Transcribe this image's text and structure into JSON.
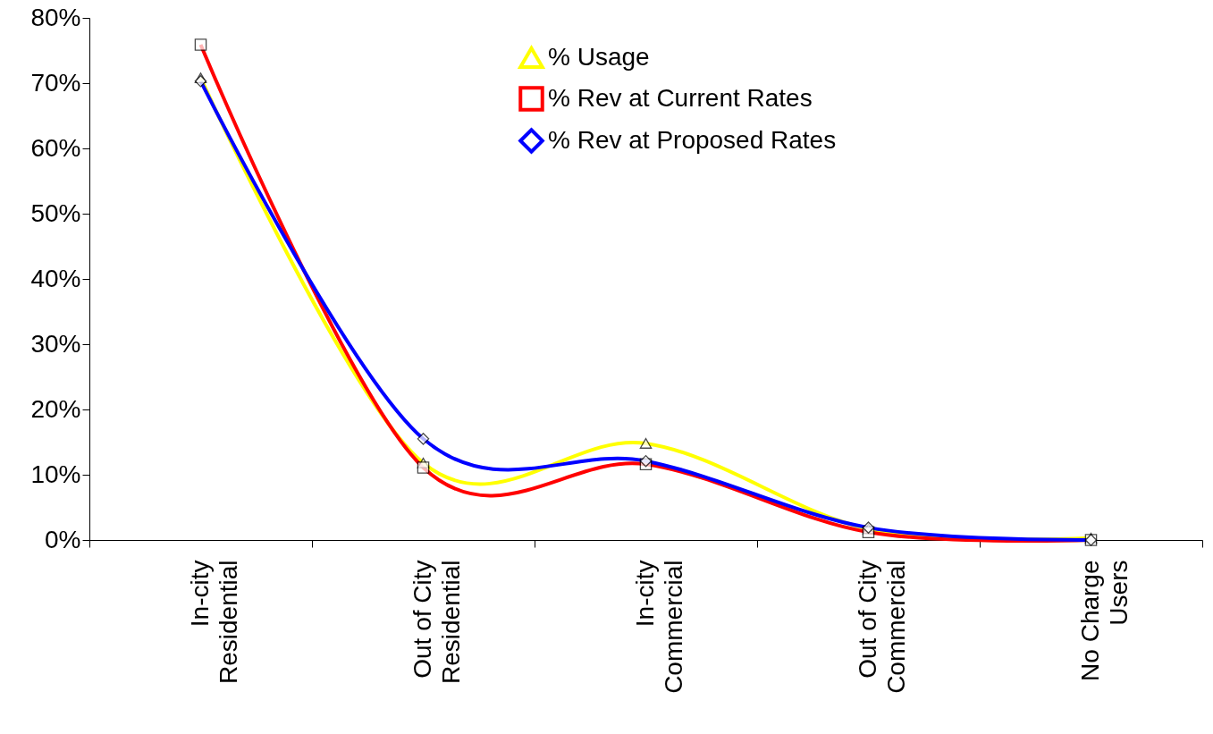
{
  "chart_data": {
    "type": "line",
    "categories": [
      "In-city\nResidential",
      "Out of City\nResidential",
      "In-city\nCommercial",
      "Out of City\nCommercial",
      "No Charge\nUsers"
    ],
    "series": [
      {
        "name": "% Usage",
        "color": "#ffff00",
        "marker": "triangle",
        "values": [
          70.8,
          11.8,
          14.8,
          1.7,
          0.3
        ]
      },
      {
        "name": "% Rev at Current Rates",
        "color": "#ff0000",
        "marker": "square",
        "values": [
          75.9,
          11.1,
          11.6,
          1.2,
          0.0
        ]
      },
      {
        "name": "% Rev at Proposed Rates",
        "color": "#0000ff",
        "marker": "diamond",
        "values": [
          70.3,
          15.5,
          12.1,
          1.9,
          0.0
        ]
      }
    ],
    "ylim": [
      0,
      80
    ],
    "yticks": [
      {
        "value": 0,
        "label": "0%"
      },
      {
        "value": 10,
        "label": "10%"
      },
      {
        "value": 20,
        "label": "20%"
      },
      {
        "value": 30,
        "label": "30%"
      },
      {
        "value": 40,
        "label": "40%"
      },
      {
        "value": 50,
        "label": "50%"
      },
      {
        "value": 60,
        "label": "60%"
      },
      {
        "value": 70,
        "label": "70%"
      },
      {
        "value": 80,
        "label": "80%"
      }
    ],
    "grid": false,
    "legend": "top right"
  }
}
